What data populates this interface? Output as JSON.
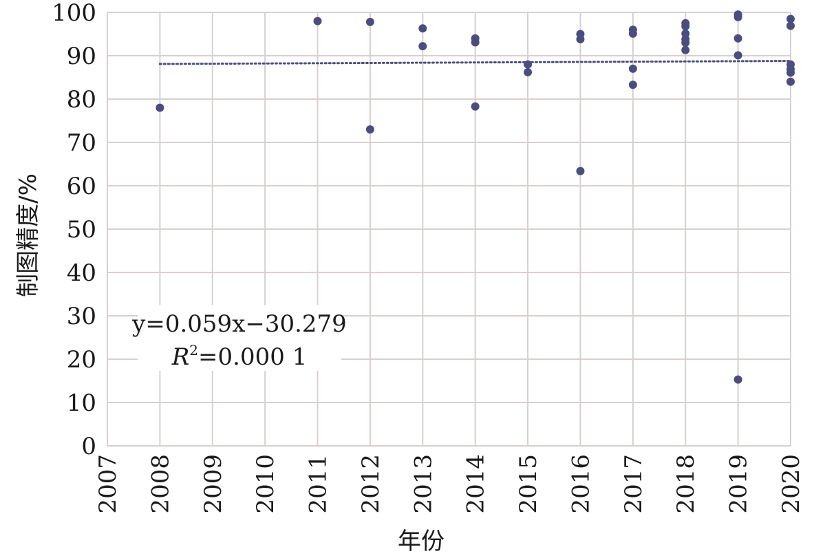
{
  "chart_data": {
    "type": "scatter",
    "title": "",
    "xlabel": "年份",
    "ylabel": "制图精度/%",
    "xlim": [
      2007,
      2020
    ],
    "ylim": [
      0,
      100
    ],
    "x_ticks": [
      "2007",
      "2008",
      "2009",
      "2010",
      "2011",
      "2012",
      "2013",
      "2014",
      "2015",
      "2016",
      "2017",
      "2018",
      "2019",
      "2020"
    ],
    "y_ticks": [
      "0",
      "10",
      "20",
      "30",
      "40",
      "50",
      "60",
      "70",
      "80",
      "90",
      "100"
    ],
    "grid": true,
    "point_color": "#4a4e7e",
    "trendline_color": "#4a4e7e",
    "grid_color": "#d9cfcf",
    "points": [
      {
        "x": 2008,
        "y": 78.0
      },
      {
        "x": 2011,
        "y": 98.0
      },
      {
        "x": 2012,
        "y": 97.8
      },
      {
        "x": 2012,
        "y": 73.0
      },
      {
        "x": 2013,
        "y": 96.3
      },
      {
        "x": 2013,
        "y": 92.2
      },
      {
        "x": 2014,
        "y": 94.0
      },
      {
        "x": 2014,
        "y": 93.1
      },
      {
        "x": 2014,
        "y": 78.3
      },
      {
        "x": 2015,
        "y": 88.0
      },
      {
        "x": 2015,
        "y": 86.2
      },
      {
        "x": 2016,
        "y": 95.0
      },
      {
        "x": 2016,
        "y": 93.8
      },
      {
        "x": 2016,
        "y": 63.4
      },
      {
        "x": 2017,
        "y": 96.0
      },
      {
        "x": 2017,
        "y": 95.1
      },
      {
        "x": 2017,
        "y": 87.0
      },
      {
        "x": 2017,
        "y": 83.3
      },
      {
        "x": 2018,
        "y": 97.5
      },
      {
        "x": 2018,
        "y": 96.8
      },
      {
        "x": 2018,
        "y": 95.1
      },
      {
        "x": 2018,
        "y": 93.8
      },
      {
        "x": 2018,
        "y": 93.0
      },
      {
        "x": 2018,
        "y": 91.3
      },
      {
        "x": 2019,
        "y": 99.5
      },
      {
        "x": 2019,
        "y": 98.9
      },
      {
        "x": 2019,
        "y": 94.0
      },
      {
        "x": 2019,
        "y": 90.1
      },
      {
        "x": 2019,
        "y": 15.3
      },
      {
        "x": 2020,
        "y": 98.5
      },
      {
        "x": 2020,
        "y": 96.9
      },
      {
        "x": 2020,
        "y": 88.0
      },
      {
        "x": 2020,
        "y": 86.9
      },
      {
        "x": 2020,
        "y": 86.1
      },
      {
        "x": 2020,
        "y": 84.0
      }
    ],
    "trendline": {
      "x_start": 2008,
      "y_start": 88.1,
      "x_end": 2020,
      "y_end": 88.8,
      "style": "dotted"
    },
    "annotation": {
      "equation": "y=0.059x−30.279",
      "r2_symbol": "R",
      "r2_exponent": "2",
      "r2_value": "=0.000 1"
    }
  }
}
